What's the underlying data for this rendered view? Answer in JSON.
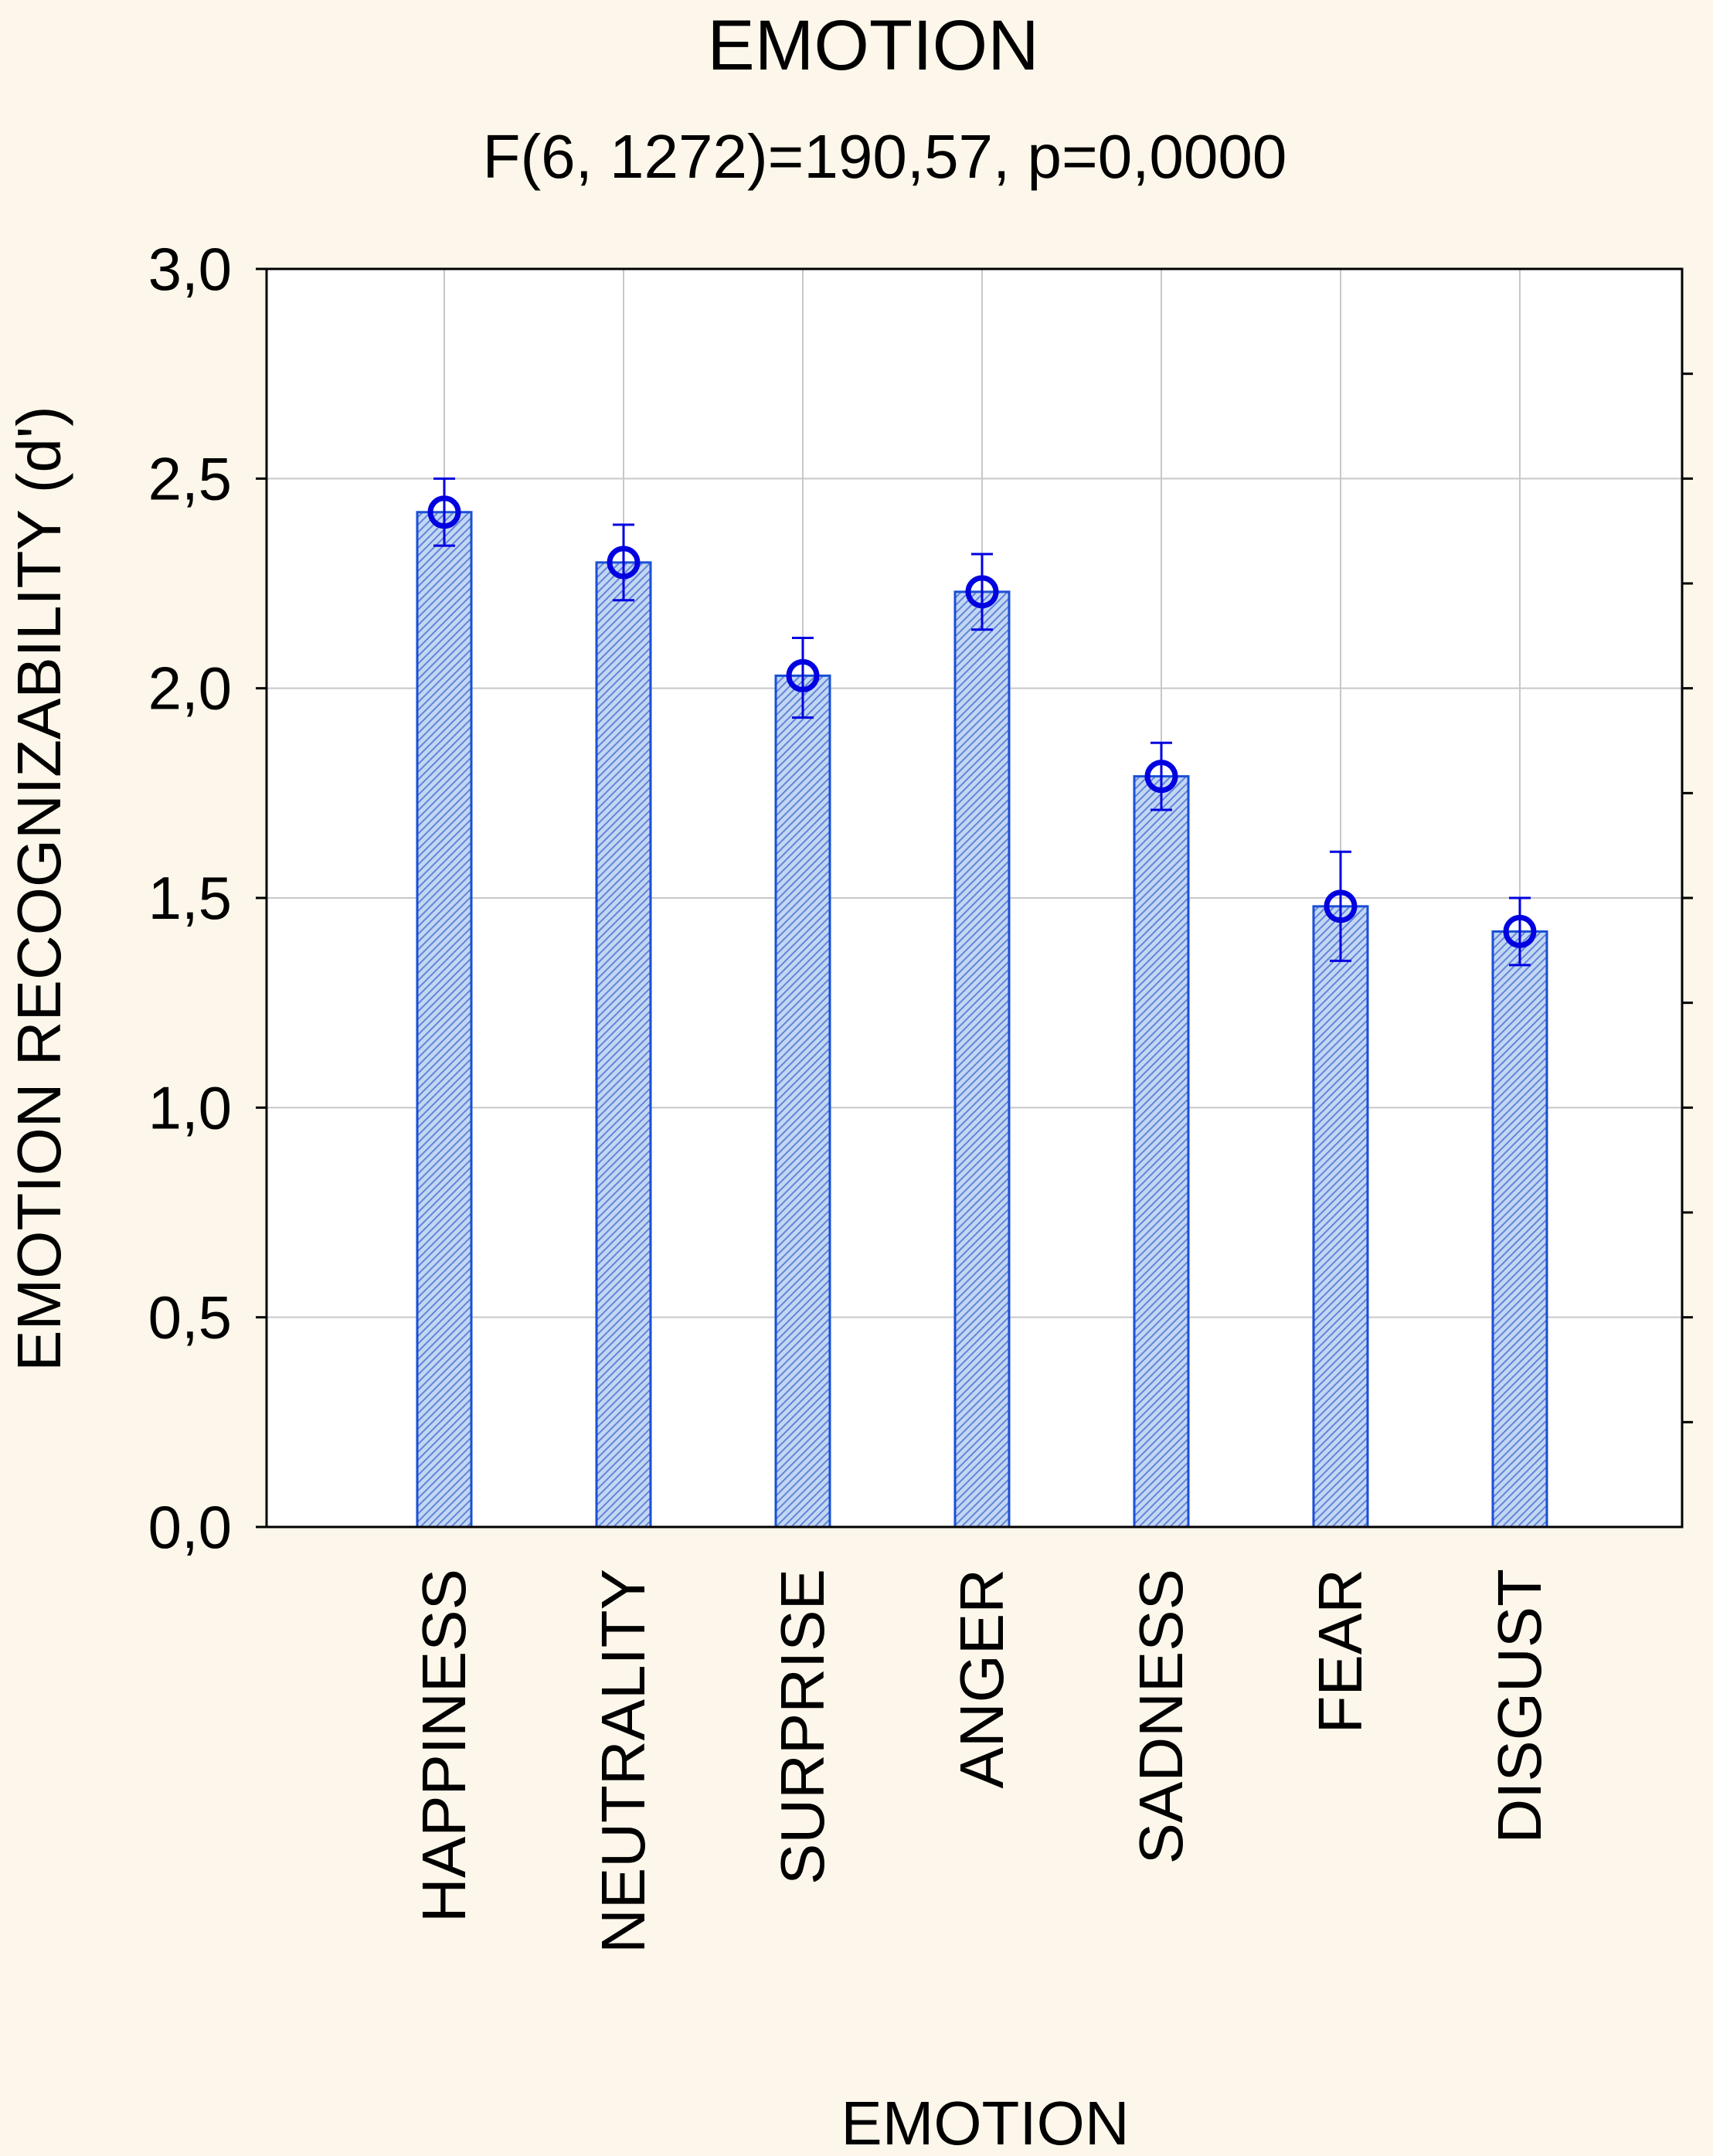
{
  "chart_data": {
    "type": "bar",
    "title": "EMOTION",
    "subtitle": "F(6, 1272)=190,57, p=0,0000",
    "xlabel": "EMOTION",
    "ylabel": "EMOTION RECOGNIZABILITY (d')",
    "ylim": [
      0,
      3
    ],
    "yticks": [
      "0,0",
      "0,5",
      "1,0",
      "1,5",
      "2,0",
      "2,5",
      "3,0"
    ],
    "grid": true,
    "categories": [
      "HAPPINESS",
      "NEUTRALITY",
      "SURPRISE",
      "ANGER",
      "SADNESS",
      "FEAR",
      "DISGUST"
    ],
    "values": [
      2.42,
      2.3,
      2.03,
      2.23,
      1.79,
      1.48,
      1.42
    ],
    "error_upper": [
      2.5,
      2.39,
      2.12,
      2.32,
      1.87,
      1.61,
      1.5
    ],
    "error_lower": [
      2.34,
      2.21,
      1.93,
      2.14,
      1.71,
      1.35,
      1.34
    ],
    "colors": {
      "bar_fill": "#b9cff0",
      "bar_stroke": "#1a4fd6",
      "marker": "#0000e0",
      "grid": "#c8c8c8",
      "background": "#fcf7ea",
      "plot_background": "#ffffff"
    }
  }
}
